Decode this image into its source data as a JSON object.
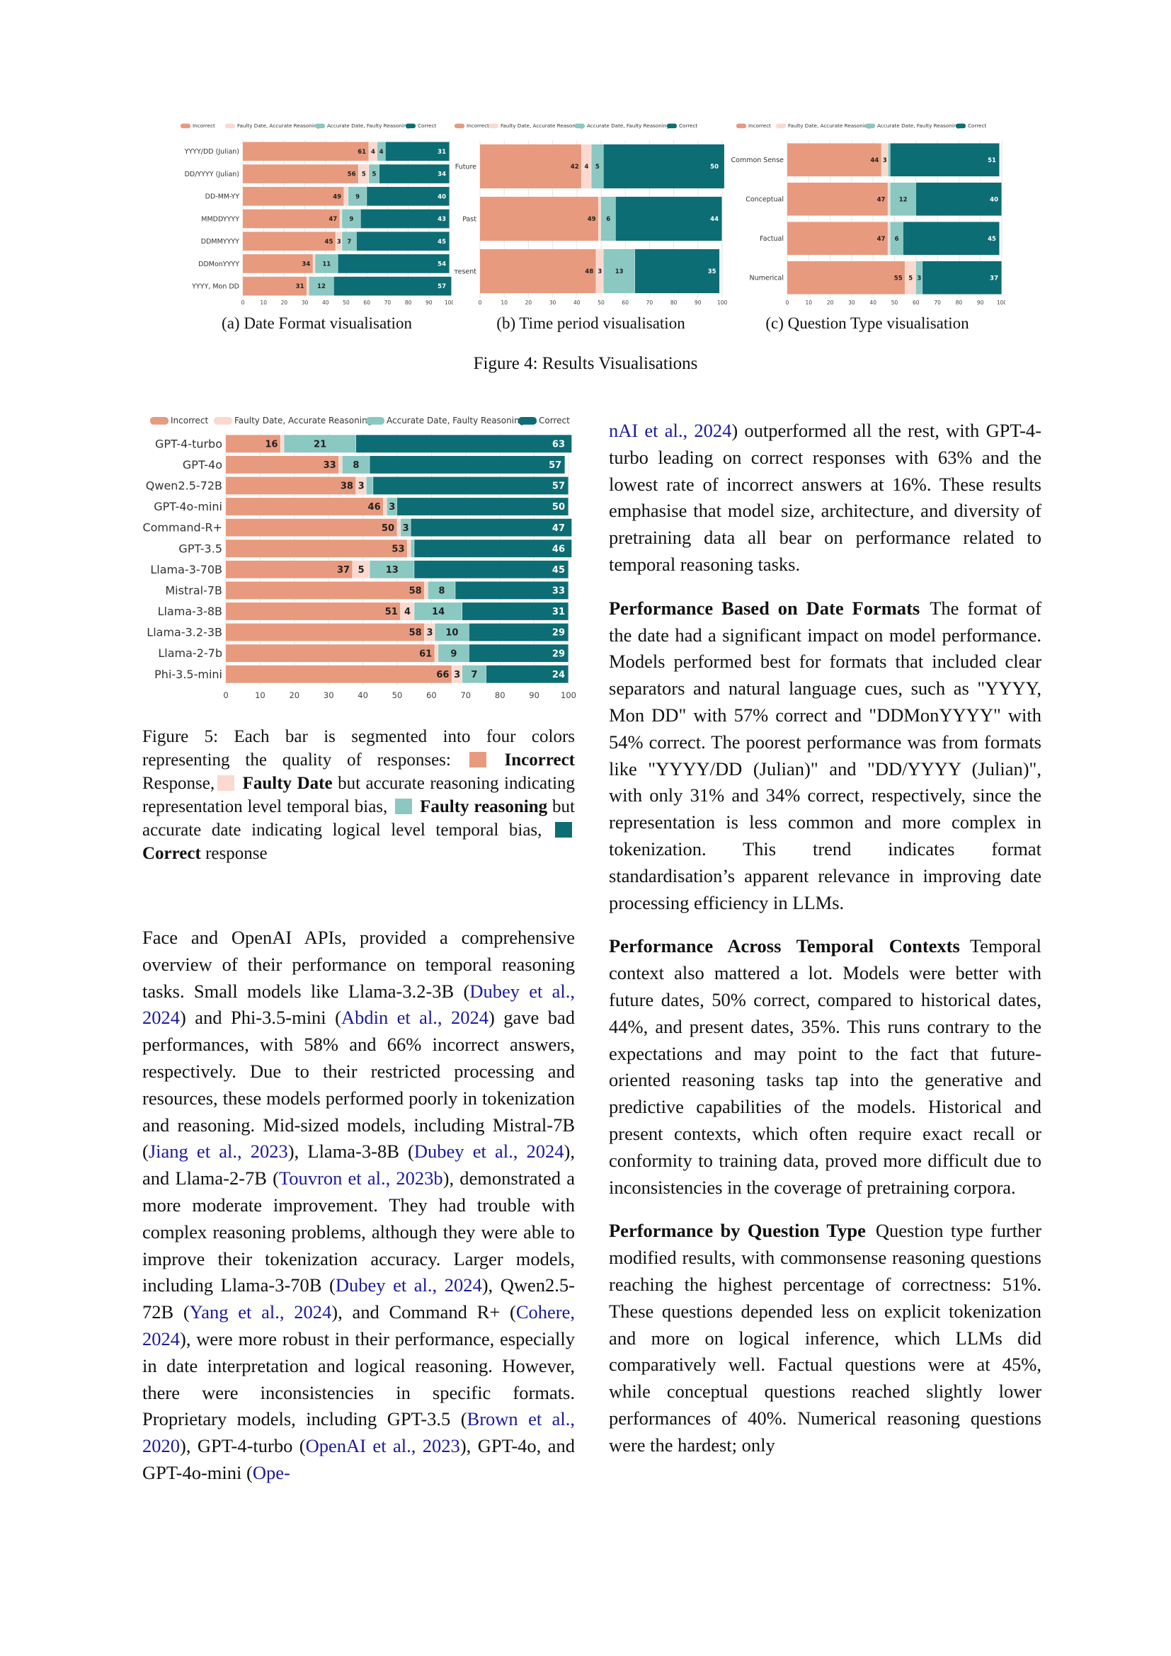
{
  "colors": {
    "incorrect": "#e89a7e",
    "faulty_date": "#fbd9cf",
    "faulty_reasoning": "#8ac8c1",
    "correct": "#0d6d74",
    "link": "#1a1a9c"
  },
  "legend_labels": [
    "Incorrect",
    "Faulty Date, Accurate Reasoning",
    "Accurate Date, Faulty Reasoning",
    "Correct"
  ],
  "figure4": {
    "caption": "Figure 4: Results Visualisations",
    "subcaptions": [
      "(a) Date Format visualisation",
      "(b) Time period visualisation",
      "(c) Question Type visualisation"
    ]
  },
  "chart_data": [
    {
      "type": "bar",
      "orientation": "horizontal",
      "stacked": true,
      "grid": true,
      "legend": "top",
      "categories": [
        "YYYY/DD (Julian)",
        "DD/YYYY (Julian)",
        "DD-MM-YY",
        "MMDDYYYY",
        "DDMMYYYY",
        "DDMonYYYY",
        "YYYY, Mon DD"
      ],
      "series": [
        {
          "name": "Incorrect",
          "values": [
            61,
            56,
            49,
            47,
            45,
            34,
            31
          ]
        },
        {
          "name": "Faulty Date, Accurate Reasoning",
          "values": [
            4,
            5,
            2,
            1,
            3,
            1,
            1
          ]
        },
        {
          "name": "Accurate Date, Faulty Reasoning",
          "values": [
            4,
            5,
            9,
            9,
            7,
            11,
            12
          ]
        },
        {
          "name": "Correct",
          "values": [
            31,
            34,
            40,
            43,
            45,
            54,
            57
          ]
        }
      ],
      "xlim": [
        0,
        100
      ],
      "xticks": [
        0,
        10,
        20,
        30,
        40,
        50,
        60,
        70,
        80,
        90,
        100
      ],
      "value_labels_shown_min": 3
    },
    {
      "type": "bar",
      "orientation": "horizontal",
      "stacked": true,
      "grid": true,
      "legend": "top",
      "categories": [
        "Future",
        "Past",
        "Present"
      ],
      "series": [
        {
          "name": "Incorrect",
          "values": [
            42,
            49,
            48
          ]
        },
        {
          "name": "Faulty Date, Accurate Reasoning",
          "values": [
            4,
            1,
            3
          ]
        },
        {
          "name": "Accurate Date, Faulty Reasoning",
          "values": [
            5,
            6,
            13
          ]
        },
        {
          "name": "Correct",
          "values": [
            50,
            44,
            35
          ]
        }
      ],
      "xlim": [
        0,
        100
      ],
      "xticks": [
        0,
        10,
        20,
        30,
        40,
        50,
        60,
        70,
        80,
        90,
        100
      ],
      "value_labels_shown_min": 3
    },
    {
      "type": "bar",
      "orientation": "horizontal",
      "stacked": true,
      "grid": true,
      "legend": "top",
      "categories": [
        "Common Sense",
        "Conceptual",
        "Factual",
        "Numerical"
      ],
      "series": [
        {
          "name": "Incorrect",
          "values": [
            44,
            47,
            47,
            55
          ]
        },
        {
          "name": "Faulty Date, Accurate Reasoning",
          "values": [
            3,
            1,
            1,
            5
          ]
        },
        {
          "name": "Accurate Date, Faulty Reasoning",
          "values": [
            1,
            12,
            6,
            3
          ]
        },
        {
          "name": "Correct",
          "values": [
            51,
            40,
            45,
            37
          ]
        }
      ],
      "xlim": [
        0,
        100
      ],
      "xticks": [
        0,
        10,
        20,
        30,
        40,
        50,
        60,
        70,
        80,
        90,
        100
      ],
      "value_labels_shown_min": 3
    },
    {
      "type": "bar",
      "orientation": "horizontal",
      "stacked": true,
      "grid": true,
      "legend": "top",
      "categories": [
        "GPT-4-turbo",
        "GPT-4o",
        "Qwen2.5-72B",
        "GPT-4o-mini",
        "Command-R+",
        "GPT-3.5",
        "Llama-3-70B",
        "Mistral-7B",
        "Llama-3-8B",
        "Llama-3.2-3B",
        "Llama-2-7b",
        "Phi-3.5-mini"
      ],
      "series": [
        {
          "name": "Incorrect",
          "values": [
            16,
            33,
            38,
            46,
            50,
            53,
            37,
            58,
            51,
            58,
            61,
            66
          ]
        },
        {
          "name": "Faulty Date, Accurate Reasoning",
          "values": [
            1,
            1,
            3,
            1,
            1,
            1,
            5,
            1,
            4,
            3,
            1,
            3
          ]
        },
        {
          "name": "Accurate Date, Faulty Reasoning",
          "values": [
            21,
            8,
            2,
            3,
            3,
            1,
            13,
            8,
            14,
            10,
            9,
            7
          ]
        },
        {
          "name": "Correct",
          "values": [
            63,
            57,
            57,
            50,
            47,
            46,
            45,
            33,
            31,
            29,
            29,
            24
          ]
        }
      ],
      "xlim": [
        0,
        100
      ],
      "xticks": [
        0,
        10,
        20,
        30,
        40,
        50,
        60,
        70,
        80,
        90,
        100
      ],
      "value_labels_shown_min": 3
    }
  ],
  "figure5_caption": {
    "p1": "Figure 5:  Each bar is segmented into four colors representing the quality of responses: ",
    "b1": "Incorrect",
    "p2": " Response,",
    "b2": "Faulty Date",
    "p3": " but accurate reasoning indicating representation level temporal bias, ",
    "b3": "Faulty reasoning",
    "p4": " but accurate date indicating logical level temporal bias, ",
    "b4": "Correct",
    "p5": " response"
  },
  "left_col": {
    "p1": "Face and OpenAI APIs, provided a comprehensive overview of their performance on temporal reasoning tasks. Small models like Llama-3.2-3B (",
    "c1": "Dubey et al., 2024",
    "p2": ") and Phi-3.5-mini (",
    "c2": "Abdin et al., 2024",
    "p3": ") gave bad performances, with 58% and 66% incorrect answers, respectively. Due to their restricted processing and resources, these models performed poorly in tokenization and reasoning. Mid-sized models, including Mistral-7B (",
    "c3": "Jiang et al., 2023",
    "p4": "), Llama-3-8B (",
    "c4": "Dubey et al., 2024",
    "p5": "), and Llama-2-7B (",
    "c5": "Touvron et al., 2023b",
    "p6": "), demonstrated a more moderate improvement. They had trouble with complex reasoning problems, although they were able to improve their tokenization accuracy. Larger models, including Llama-3-70B (",
    "c6": "Dubey et al., 2024",
    "p7": "), Qwen2.5-72B (",
    "c7": "Yang et al., 2024",
    "p8": "), and Command R+ (",
    "c8": "Cohere, 2024",
    "p9": "), were more robust in their performance, especially in date interpretation and logical reasoning. However, there were inconsistencies in specific formats. Proprietary models, including GPT-3.5 (",
    "c9": "Brown et al., 2020",
    "p10": "), GPT-4-turbo (",
    "c10": "OpenAI et al., 2023",
    "p11": "), GPT-4o, and GPT-4o-mini (",
    "c11": "Ope-"
  },
  "right_col": {
    "c0": "nAI et al., 2024",
    "p0": ") outperformed all the rest, with GPT-4-turbo leading on correct responses with 63% and the lowest rate of incorrect answers at 16%. These results emphasise that model size, architecture, and diversity of pretraining data all bear on performance related to temporal reasoning tasks.",
    "h1": "Performance Based on Date Formats",
    "t1": "The format of the date had a significant impact on model performance. Models performed best for formats that included clear separators and natural language cues, such as \"YYYY, Mon DD\" with 57% correct and \"DDMonYYYY\" with 54% correct. The poorest performance was from formats like \"YYYY/DD (Julian)\" and \"DD/YYYY (Julian)\", with only 31% and 34% correct, respectively, since the representation is less common and more complex in tokenization. This trend indicates format standardisation’s apparent relevance in improving date processing efficiency in LLMs.",
    "h2": "Performance Across Temporal Contexts",
    "t2": "Temporal context also mattered a lot.  Models were better with future dates, 50% correct, compared to historical dates, 44%, and present dates, 35%. This runs contrary to the expectations and may point to the fact that future-oriented reasoning tasks tap into the generative and predictive capabilities of the models. Historical and present contexts, which often require exact recall or conformity to training data, proved more difficult due to inconsistencies in the coverage of pretraining corpora.",
    "h3": "Performance by Question Type",
    "t3": "Question type further modified results, with commonsense reasoning questions reaching the highest percentage of correctness: 51%. These questions depended less on explicit tokenization and more on logical inference, which LLMs did comparatively well. Factual questions were at 45%, while conceptual questions reached slightly lower performances of 40%. Numerical reasoning questions were the hardest; only"
  }
}
